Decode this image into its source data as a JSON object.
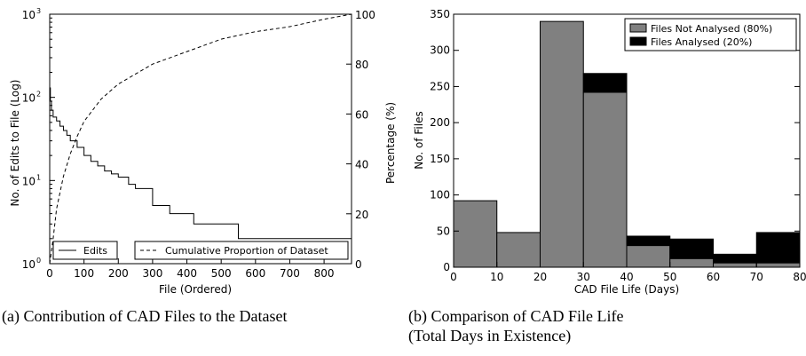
{
  "chart_data": [
    {
      "type": "line",
      "panel": "a",
      "caption": "(a) Contribution of CAD Files to the Dataset",
      "xlabel": "File (Ordered)",
      "ylabel": "No. of Edits to File (Log)",
      "y2label": "Percentage (%)",
      "xlim": [
        0,
        880
      ],
      "ylim": [
        1,
        1000
      ],
      "yscale": "log",
      "y2lim": [
        0,
        100
      ],
      "xticks": [
        0,
        100,
        200,
        300,
        400,
        500,
        600,
        700,
        800
      ],
      "yticks": [
        {
          "value": 1,
          "label": "10",
          "exp": "0"
        },
        {
          "value": 10,
          "label": "10",
          "exp": "1"
        },
        {
          "value": 100,
          "label": "10",
          "exp": "2"
        },
        {
          "value": 1000,
          "label": "10",
          "exp": "3"
        }
      ],
      "y2ticks": [
        0,
        20,
        40,
        60,
        80,
        100
      ],
      "legend": [
        {
          "name": "Edits",
          "style": "solid"
        },
        {
          "name": "Cumulative Proportion of Dataset",
          "style": "dashed"
        }
      ],
      "legend_placement": "bottom",
      "series": [
        {
          "name": "Edits",
          "axis": "left",
          "style": "solid",
          "x": [
            0,
            2,
            5,
            10,
            20,
            30,
            40,
            50,
            60,
            80,
            100,
            120,
            140,
            160,
            180,
            200,
            230,
            250,
            300,
            350,
            420,
            550,
            560,
            880
          ],
          "y": [
            130,
            90,
            70,
            58,
            52,
            45,
            40,
            35,
            30,
            25,
            20,
            17,
            15,
            13,
            12,
            11,
            9,
            8,
            5,
            4,
            3,
            2,
            2,
            1
          ]
        },
        {
          "name": "Cumulative Proportion of Dataset",
          "axis": "right",
          "style": "dashed",
          "x": [
            0,
            10,
            20,
            40,
            60,
            80,
            100,
            150,
            200,
            250,
            300,
            400,
            500,
            600,
            700,
            800,
            880
          ],
          "y": [
            0,
            10,
            22,
            35,
            44,
            51,
            57,
            66,
            72,
            76,
            80,
            85,
            90,
            93,
            95,
            98,
            100
          ]
        }
      ]
    },
    {
      "type": "bar",
      "stacked": true,
      "panel": "b",
      "caption": "(b) Comparison of CAD File Life",
      "caption2": "(Total Days in Existence)",
      "xlabel": "CAD File Life (Days)",
      "ylabel": "No. of Files",
      "xlim": [
        0,
        80
      ],
      "ylim": [
        0,
        350
      ],
      "xticks": [
        0,
        10,
        20,
        30,
        40,
        50,
        60,
        70,
        80
      ],
      "yticks": [
        0,
        50,
        100,
        150,
        200,
        250,
        300,
        350
      ],
      "bins": [
        [
          0,
          10
        ],
        [
          10,
          20
        ],
        [
          20,
          30
        ],
        [
          30,
          40
        ],
        [
          40,
          50
        ],
        [
          50,
          60
        ],
        [
          60,
          70
        ],
        [
          70,
          80
        ]
      ],
      "legend_placement": "top-right",
      "series": [
        {
          "name": "Files Not Analysed (80%)",
          "color": "#808080",
          "values": [
            92,
            48,
            340,
            242,
            30,
            12,
            6,
            6
          ]
        },
        {
          "name": "Files Analysed (20%)",
          "color": "#000000",
          "values": [
            0,
            0,
            0,
            26,
            13,
            27,
            12,
            42
          ]
        }
      ]
    }
  ]
}
